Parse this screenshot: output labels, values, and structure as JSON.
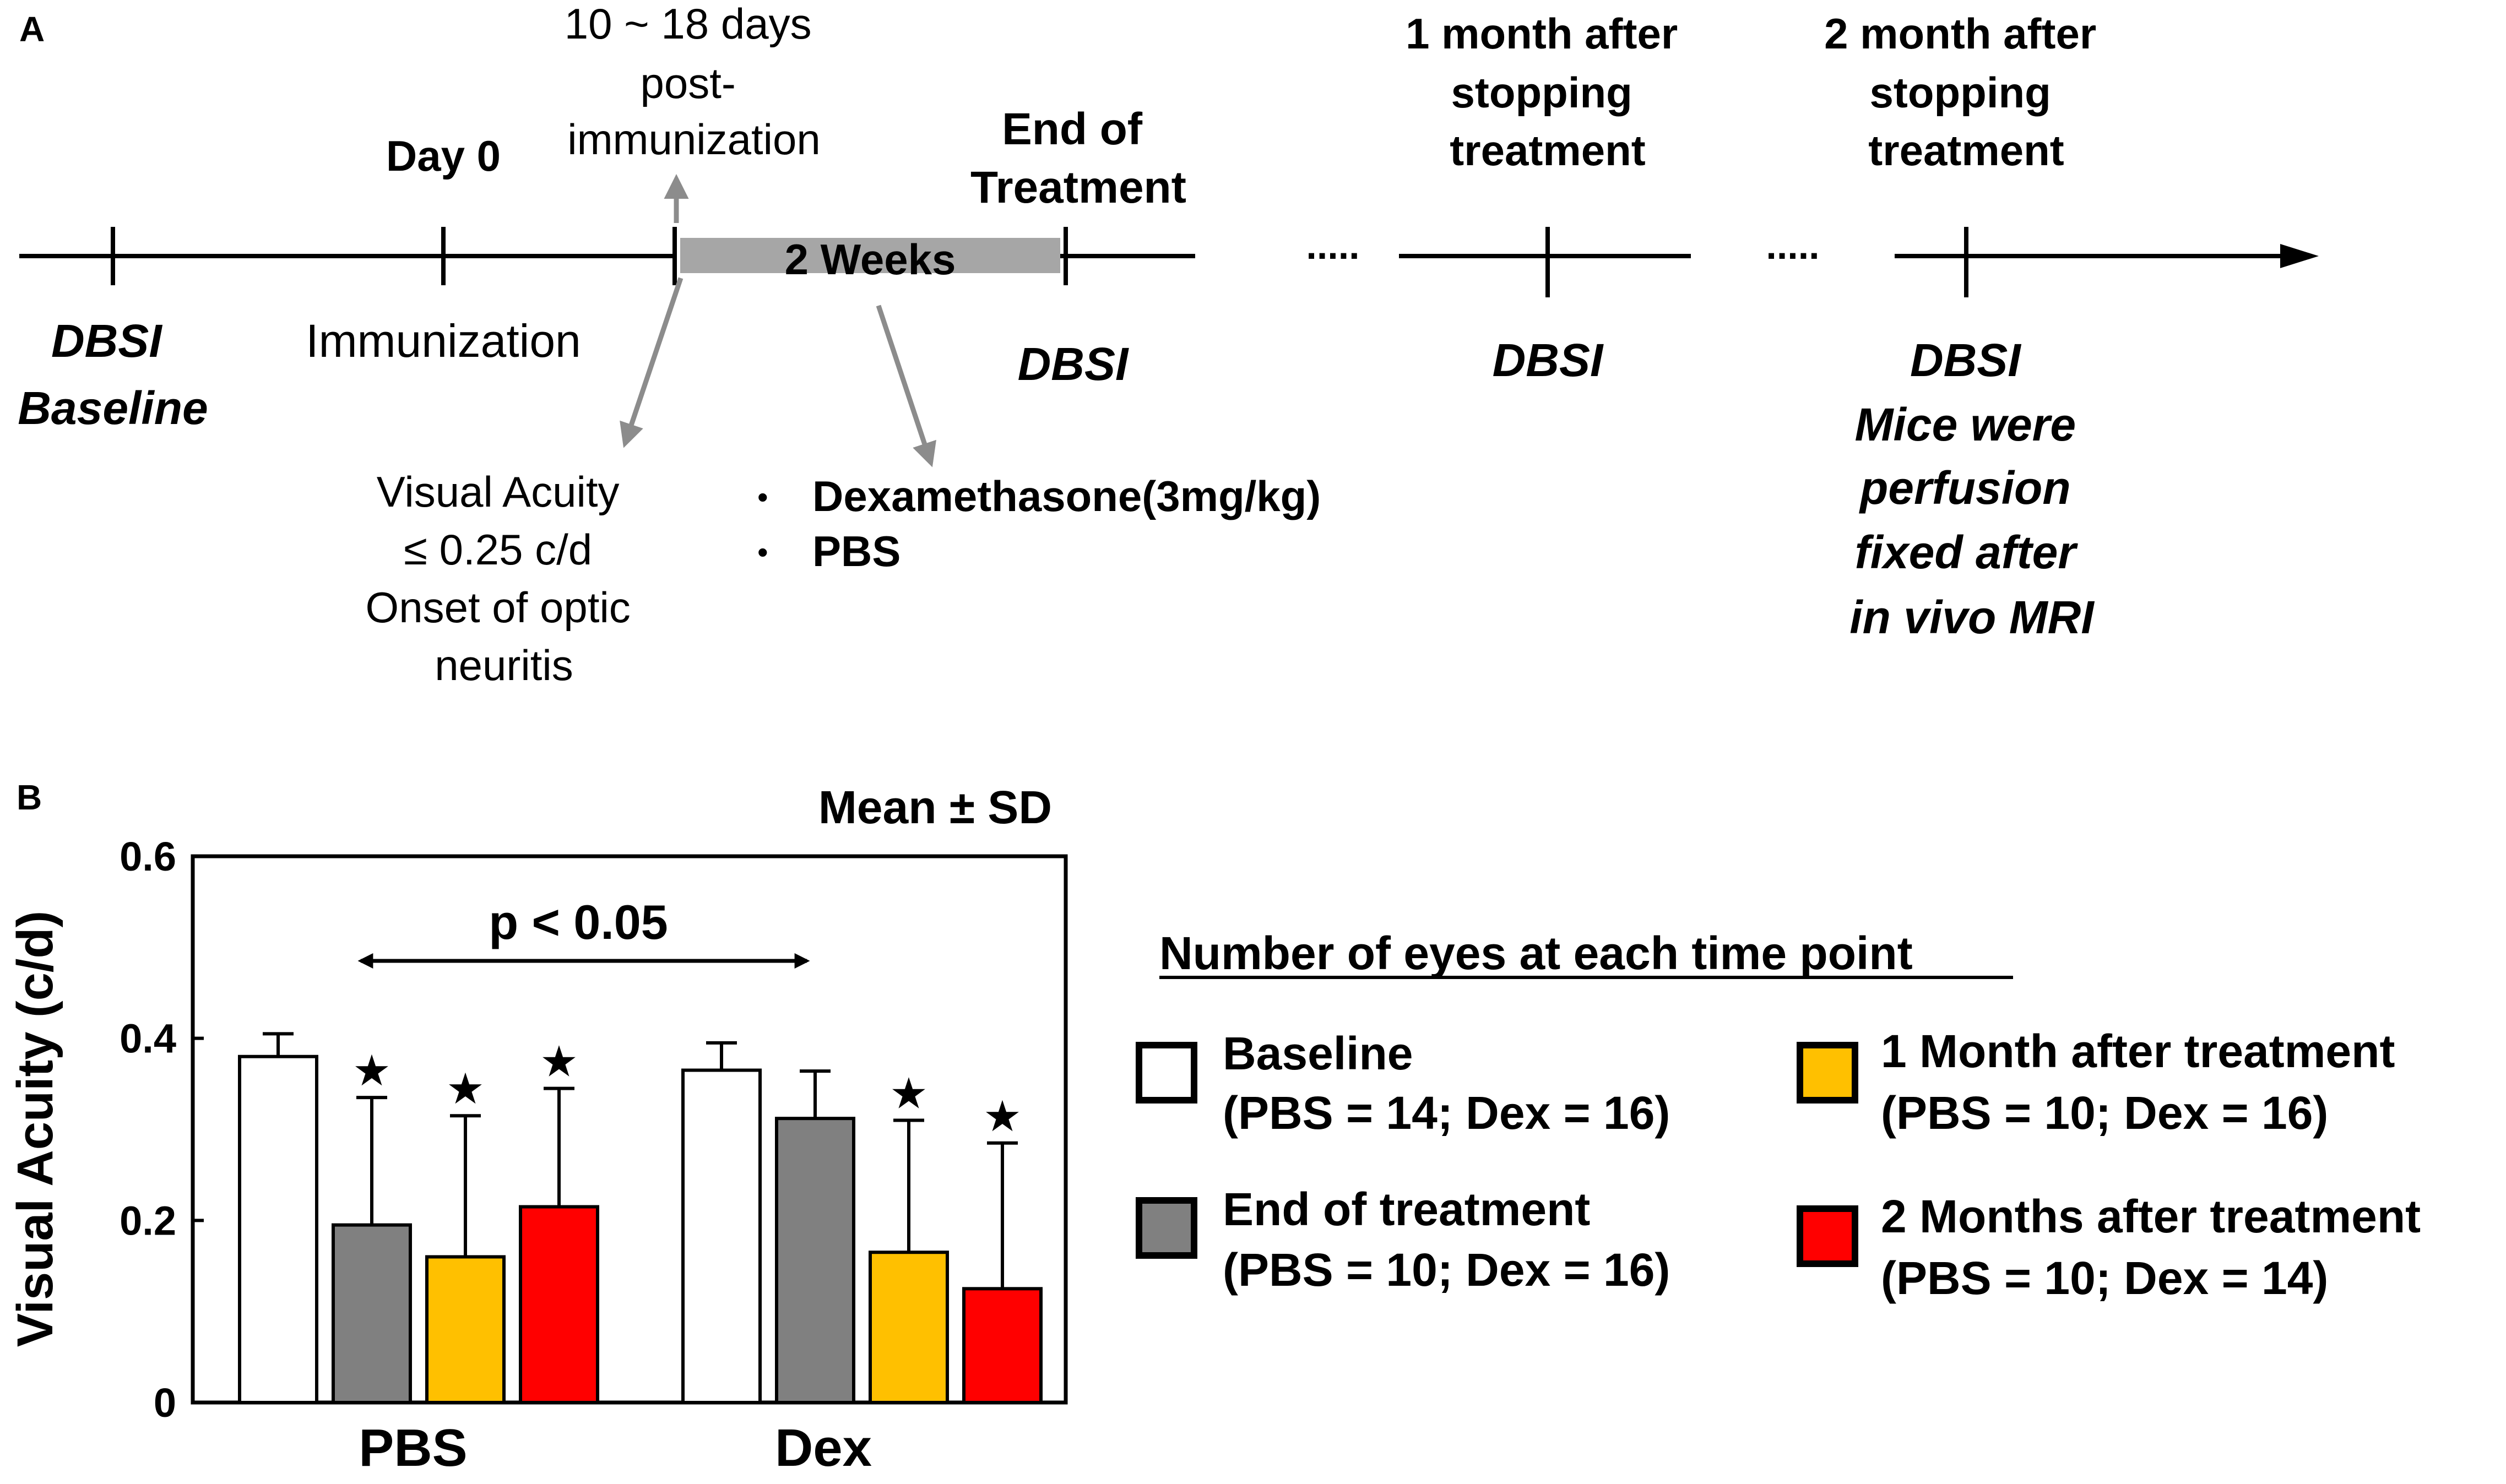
{
  "panel_a": {
    "label": "A",
    "events": {
      "post_immunization": [
        "10 ~ 18 days",
        "post-",
        "immunization"
      ],
      "day0": "Day 0",
      "end_treatment": [
        "End of",
        "Treatment"
      ],
      "one_month": [
        "1 month after",
        "stopping",
        "treatment"
      ],
      "two_month": [
        "2 month after",
        "stopping",
        "treatment"
      ]
    },
    "two_weeks": "2 Weeks",
    "ellipsis": ".....",
    "below": {
      "dbsi_baseline": [
        "DBSI",
        "Baseline"
      ],
      "immunization": "Immunization",
      "dbsi": "DBSI",
      "dbsi_final": [
        "DBSI",
        "Mice were",
        "perfusion",
        "fixed after",
        "in vivo MRI"
      ]
    },
    "onset": [
      "Visual Acuity",
      "≤ 0.25 c/d",
      "Onset of optic",
      "neuritis"
    ],
    "treatments": [
      "Dexamethasone(3mg/kg)",
      "PBS"
    ],
    "bullet": "•"
  },
  "panel_b": {
    "label": "B",
    "stat_note": "Mean ± SD",
    "significance": "p < 0.05",
    "star": "★",
    "legend": {
      "title": "Number of eyes at each time point",
      "items": [
        {
          "name": "Baseline",
          "counts": "(PBS = 14; Dex = 16)",
          "color": "#ffffff"
        },
        {
          "name": "End of treatment",
          "counts": "(PBS = 10; Dex = 16)",
          "color": "#808080"
        },
        {
          "name": "1 Month after treatment",
          "counts": "(PBS = 10; Dex = 16)",
          "color": "#ffc000"
        },
        {
          "name": "2 Months after treatment",
          "counts": "(PBS = 10; Dex = 14)",
          "color": "#ff0000"
        }
      ]
    }
  },
  "chart_data": {
    "type": "bar",
    "title": "Mean ± SD",
    "xlabel": "",
    "ylabel": "Visual Acuity (c/d)",
    "ylim": [
      0,
      0.6
    ],
    "yticks": [
      "0",
      "0.2",
      "0.4",
      "0.6"
    ],
    "categories": [
      "PBS",
      "Dex"
    ],
    "series": [
      {
        "name": "Baseline",
        "values": [
          0.38,
          0.365
        ],
        "sd": [
          0.025,
          0.03
        ],
        "significant": [
          false,
          false
        ],
        "color": "#ffffff"
      },
      {
        "name": "End of treatment",
        "values": [
          0.195,
          0.312
        ],
        "sd": [
          0.14,
          0.052
        ],
        "significant": [
          true,
          false
        ],
        "color": "#808080"
      },
      {
        "name": "1 Month after treatment",
        "values": [
          0.16,
          0.165
        ],
        "sd": [
          0.155,
          0.145
        ],
        "significant": [
          true,
          true
        ],
        "color": "#ffc000"
      },
      {
        "name": "2 Months after treatment",
        "values": [
          0.215,
          0.125
        ],
        "sd": [
          0.13,
          0.16
        ],
        "significant": [
          true,
          true
        ],
        "color": "#ff0000"
      }
    ],
    "annotation": "p < 0.05"
  }
}
